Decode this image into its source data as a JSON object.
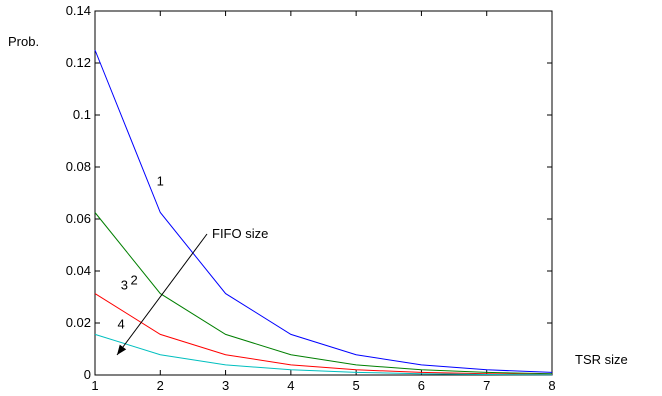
{
  "chart_data": {
    "type": "line",
    "title": "",
    "xlabel": "TSR size",
    "ylabel": "Prob.",
    "xlim": [
      1,
      8
    ],
    "ylim": [
      0,
      0.14
    ],
    "x": [
      1,
      2,
      3,
      4,
      5,
      6,
      7,
      8
    ],
    "x_ticks": [
      "1",
      "2",
      "3",
      "4",
      "5",
      "6",
      "7",
      "8"
    ],
    "y_ticks": [
      "0",
      "0.02",
      "0.04",
      "0.06",
      "0.08",
      "0.1",
      "0.12",
      "0.14"
    ],
    "y_tick_values": [
      0,
      0.02,
      0.04,
      0.06,
      0.08,
      0.1,
      0.12,
      0.14
    ],
    "grid": false,
    "series": [
      {
        "name": "1",
        "color": "#0000ff",
        "values": [
          0.125,
          0.0625,
          0.0313,
          0.0156,
          0.0078,
          0.0039,
          0.002,
          0.001
        ]
      },
      {
        "name": "2",
        "color": "#007f00",
        "values": [
          0.0625,
          0.0313,
          0.0156,
          0.0078,
          0.0039,
          0.002,
          0.001,
          0.0005
        ]
      },
      {
        "name": "3",
        "color": "#ff0000",
        "values": [
          0.0313,
          0.0156,
          0.0078,
          0.0039,
          0.002,
          0.001,
          0.0005,
          0.0002
        ]
      },
      {
        "name": "4",
        "color": "#00bfbf",
        "values": [
          0.0156,
          0.0078,
          0.0039,
          0.002,
          0.001,
          0.0005,
          0.0002,
          0.0001
        ]
      }
    ],
    "annotations": [
      {
        "text": "FIFO size",
        "type": "arrow"
      }
    ]
  }
}
